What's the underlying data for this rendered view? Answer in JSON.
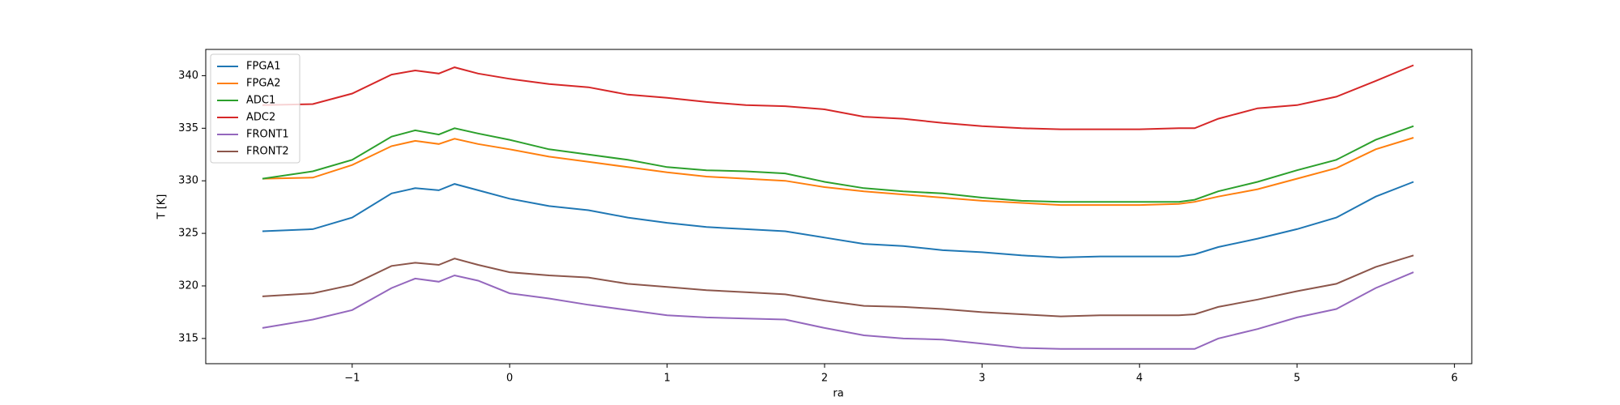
{
  "chart_data": {
    "type": "line",
    "xlabel": "ra",
    "ylabel": "T [K]",
    "legend": "upper left",
    "x": [
      -1.57,
      -1.25,
      -1,
      -0.75,
      -0.6,
      -0.45,
      -0.35,
      -0.2,
      0,
      0.25,
      0.5,
      0.75,
      1,
      1.25,
      1.5,
      1.75,
      2,
      2.25,
      2.5,
      2.75,
      3,
      3.25,
      3.5,
      3.75,
      4,
      4.25,
      4.35,
      4.5,
      4.75,
      5,
      5.25,
      5.5,
      5.74
    ],
    "series": [
      {
        "name": "FPGA1",
        "color": "#1f77b4",
        "values": [
          325.2,
          325.4,
          326.5,
          328.8,
          329.3,
          329.1,
          329.7,
          329.1,
          328.3,
          327.6,
          327.2,
          326.5,
          326.0,
          325.6,
          325.4,
          325.2,
          324.6,
          324.0,
          323.8,
          323.4,
          323.2,
          322.9,
          322.7,
          322.8,
          322.8,
          322.8,
          323.0,
          323.7,
          324.5,
          325.4,
          326.5,
          328.5,
          329.9
        ]
      },
      {
        "name": "FPGA2",
        "color": "#ff7f0e",
        "values": [
          330.2,
          330.3,
          331.5,
          333.3,
          333.8,
          333.5,
          334.0,
          333.5,
          333.0,
          332.3,
          331.8,
          331.3,
          330.8,
          330.4,
          330.2,
          330.0,
          329.4,
          329.0,
          328.7,
          328.4,
          328.1,
          327.9,
          327.7,
          327.7,
          327.7,
          327.8,
          328.0,
          328.5,
          329.2,
          330.2,
          331.2,
          333.0,
          334.1
        ]
      },
      {
        "name": "ADC1",
        "color": "#2ca02c",
        "values": [
          330.2,
          330.9,
          332.0,
          334.2,
          334.8,
          334.4,
          335.0,
          334.5,
          333.9,
          333.0,
          332.5,
          332.0,
          331.3,
          331.0,
          330.9,
          330.7,
          329.9,
          329.3,
          329.0,
          328.8,
          328.4,
          328.1,
          328.0,
          328.0,
          328.0,
          328.0,
          328.2,
          329.0,
          329.9,
          331.0,
          332.0,
          333.9,
          335.2
        ]
      },
      {
        "name": "ADC2",
        "color": "#d62728",
        "values": [
          337.2,
          337.3,
          338.3,
          340.1,
          340.5,
          340.2,
          340.8,
          340.2,
          339.7,
          339.2,
          338.9,
          338.2,
          337.9,
          337.5,
          337.2,
          337.1,
          336.8,
          336.1,
          335.9,
          335.5,
          335.2,
          335.0,
          334.9,
          334.9,
          334.9,
          335.0,
          335.0,
          335.9,
          336.9,
          337.2,
          338.0,
          339.5,
          341.0
        ]
      },
      {
        "name": "FRONT1",
        "color": "#9467bd",
        "values": [
          316.0,
          316.8,
          317.7,
          319.8,
          320.7,
          320.4,
          321.0,
          320.5,
          319.3,
          318.8,
          318.2,
          317.7,
          317.2,
          317.0,
          316.9,
          316.8,
          316.0,
          315.3,
          315.0,
          314.9,
          314.5,
          314.1,
          314.0,
          314.0,
          314.0,
          314.0,
          314.0,
          315.0,
          315.9,
          317.0,
          317.8,
          319.8,
          321.3
        ]
      },
      {
        "name": "FRONT2",
        "color": "#8c564b",
        "values": [
          319.0,
          319.3,
          320.1,
          321.9,
          322.2,
          322.0,
          322.6,
          322.0,
          321.3,
          321.0,
          320.8,
          320.2,
          319.9,
          319.6,
          319.4,
          319.2,
          318.6,
          318.1,
          318.0,
          317.8,
          317.5,
          317.3,
          317.1,
          317.2,
          317.2,
          317.2,
          317.3,
          318.0,
          318.7,
          319.5,
          320.2,
          321.8,
          322.9
        ]
      }
    ],
    "xlim": [
      -1.93,
      6.11
    ],
    "xticks": [
      {
        "value": -1,
        "label": "−1"
      },
      0,
      1,
      2,
      3,
      4,
      5,
      6
    ],
    "ylim": [
      312.6,
      342.5
    ],
    "yticks": [
      315,
      320,
      325,
      330,
      335,
      340
    ]
  }
}
